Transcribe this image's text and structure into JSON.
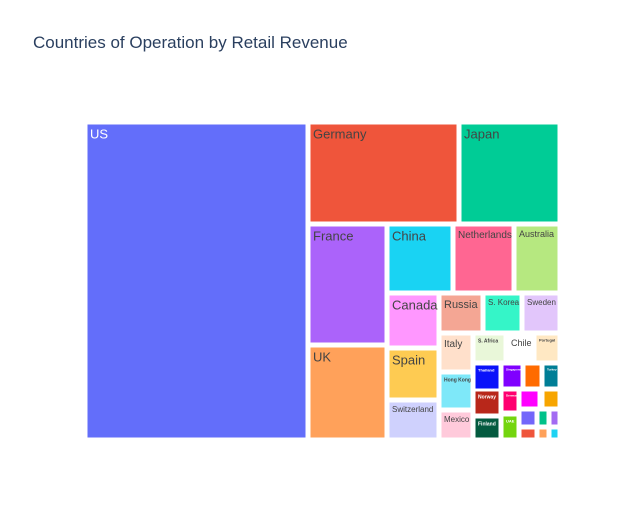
{
  "chart_data": {
    "type": "treemap",
    "title": "Countries of Operation by Retail Revenue",
    "tiles": [
      {
        "name": "US",
        "color": "#636efa",
        "text_color": "#ffffff"
      },
      {
        "name": "Germany",
        "color": "#ef553b",
        "text_color": "#444444"
      },
      {
        "name": "Japan",
        "color": "#00cc96",
        "text_color": "#444444"
      },
      {
        "name": "France",
        "color": "#ab63fa",
        "text_color": "#444444"
      },
      {
        "name": "China",
        "color": "#19d3f3",
        "text_color": "#444444"
      },
      {
        "name": "Netherlands",
        "color": "#ff6692",
        "text_color": "#444444"
      },
      {
        "name": "Australia",
        "color": "#b6e880",
        "text_color": "#444444"
      },
      {
        "name": "UK",
        "color": "#ffa15a",
        "text_color": "#444444"
      },
      {
        "name": "Canada",
        "color": "#ff97ff",
        "text_color": "#444444"
      },
      {
        "name": "Russia",
        "color": "#f4a694",
        "text_color": "#444444"
      },
      {
        "name": "S. Korea",
        "color": "#35f5c8",
        "text_color": "#444444"
      },
      {
        "name": "Sweden",
        "color": "#e2c6fb",
        "text_color": "#444444"
      },
      {
        "name": "Spain",
        "color": "#fecb52",
        "text_color": "#444444"
      },
      {
        "name": "Italy",
        "color": "#ffe0cb",
        "text_color": "#444444"
      },
      {
        "name": "S. Africa",
        "color": "#e9f7d9",
        "text_color": "#444444"
      },
      {
        "name": "Chile",
        "color": "#ffffff",
        "text_color": "#444444"
      },
      {
        "name": "Portugal",
        "color": "#ffe8c3",
        "text_color": "#444444"
      },
      {
        "name": "Hong Kong",
        "color": "#7ee8f9",
        "text_color": "#444444"
      },
      {
        "name": "Switzerland",
        "color": "#cfd1fd",
        "text_color": "#444444"
      },
      {
        "name": "Mexico",
        "color": "#ffcadb",
        "text_color": "#444444"
      },
      {
        "name": "Thailand",
        "color": "#0a12fa",
        "text_color": "#ffffff"
      },
      {
        "name": "Singapore",
        "color": "#8000ff",
        "text_color": "#ffffff"
      },
      {
        "name": "",
        "color": "#ff6b00",
        "text_color": "#ffffff"
      },
      {
        "name": "Turkey",
        "color": "#007e96",
        "text_color": "#ffffff"
      },
      {
        "name": "Norway",
        "color": "#b8271a",
        "text_color": "#ffffff"
      },
      {
        "name": "Denmark",
        "color": "#ff0070",
        "text_color": "#ffffff"
      },
      {
        "name": "",
        "color": "#64a912",
        "text_color": "#ffffff"
      },
      {
        "name": "",
        "color": "#ff00ff",
        "text_color": "#ffffff"
      },
      {
        "name": "",
        "color": "#f7a500",
        "text_color": "#ffffff"
      },
      {
        "name": "Finland",
        "color": "#045a3f",
        "text_color": "#ffffff"
      },
      {
        "name": "UAE",
        "color": "#74d50e",
        "text_color": "#ffffff"
      },
      {
        "name": "",
        "color": "#7366fa",
        "text_color": "#ffffff"
      },
      {
        "name": "",
        "color": "#00c28a",
        "text_color": "#ffffff"
      },
      {
        "name": "",
        "color": "#a36bf2",
        "text_color": "#ffffff"
      },
      {
        "name": "",
        "color": "#ef553b",
        "text_color": "#ffffff"
      },
      {
        "name": "",
        "color": "#ffa15a",
        "text_color": "#ffffff"
      },
      {
        "name": "",
        "color": "#1ed3f3",
        "text_color": "#ffffff"
      }
    ]
  }
}
